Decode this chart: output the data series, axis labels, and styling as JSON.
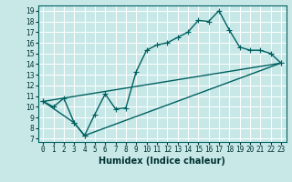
{
  "xlabel": "Humidex (Indice chaleur)",
  "ylabel": "",
  "bg_color": "#c8e8e8",
  "grid_color": "#ffffff",
  "line_color": "#006060",
  "xlim": [
    -0.5,
    23.5
  ],
  "ylim": [
    6.7,
    19.5
  ],
  "xticks": [
    0,
    1,
    2,
    3,
    4,
    5,
    6,
    7,
    8,
    9,
    10,
    11,
    12,
    13,
    14,
    15,
    16,
    17,
    18,
    19,
    20,
    21,
    22,
    23
  ],
  "yticks": [
    7,
    8,
    9,
    10,
    11,
    12,
    13,
    14,
    15,
    16,
    17,
    18,
    19
  ],
  "line1_x": [
    0,
    1,
    2,
    3,
    4,
    5,
    6,
    7,
    8,
    9,
    10,
    11,
    12,
    13,
    14,
    15,
    16,
    17,
    18,
    19,
    20,
    21,
    22,
    23
  ],
  "line1_y": [
    10.5,
    10.0,
    10.8,
    8.5,
    7.3,
    9.3,
    11.2,
    9.8,
    9.9,
    13.3,
    15.3,
    15.8,
    16.0,
    16.5,
    17.0,
    18.1,
    18.0,
    19.0,
    17.2,
    15.6,
    15.3,
    15.3,
    15.0,
    14.1
  ],
  "line2_x": [
    0,
    3,
    4,
    23
  ],
  "line2_y": [
    10.5,
    8.5,
    7.3,
    14.1
  ],
  "line3_x": [
    0,
    23
  ],
  "line3_y": [
    10.5,
    14.1
  ],
  "marker": "+",
  "markersize": 4,
  "linewidth": 1.0,
  "tick_fontsize": 5.5,
  "xlabel_fontsize": 7
}
